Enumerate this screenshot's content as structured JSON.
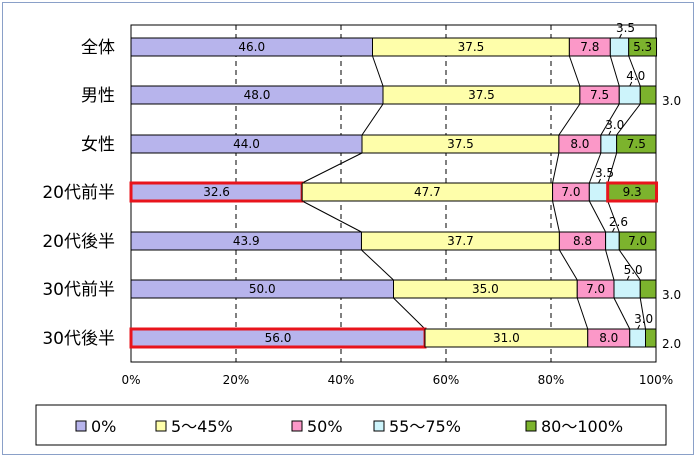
{
  "chart_data": {
    "type": "bar",
    "stacked": "percent",
    "orientation": "horizontal",
    "title": "",
    "xlabel": "",
    "ylabel": "",
    "xlim": [
      0,
      100
    ],
    "grid": true,
    "categories": [
      "全体",
      "男性",
      "女性",
      "20代前半",
      "20代後半",
      "30代前半",
      "30代後半"
    ],
    "series": [
      {
        "name": "0%",
        "color": "#b7b4ec",
        "values": [
          46.0,
          48.0,
          44.0,
          32.6,
          43.9,
          50.0,
          56.0
        ],
        "labels": [
          "46.0",
          "48.0",
          "44.0",
          "32.6",
          "43.9",
          "50.0",
          "56.0"
        ]
      },
      {
        "name": "5～45%",
        "color": "#fefeaa",
        "values": [
          37.5,
          37.5,
          37.5,
          47.7,
          37.7,
          35.0,
          31.0
        ],
        "labels": [
          "37.5",
          "37.5",
          "37.5",
          "47.7",
          "37.7",
          "35.0",
          "31.0"
        ]
      },
      {
        "name": "50%",
        "color": "#fb98c8",
        "values": [
          7.8,
          7.5,
          8.0,
          7.0,
          8.8,
          7.0,
          8.0
        ],
        "labels": [
          "7.8",
          "7.5",
          "8.0",
          "7.0",
          "8.8",
          "7.0",
          "8.0"
        ]
      },
      {
        "name": "55～75%",
        "color": "#cdf4fb",
        "values": [
          3.5,
          4.0,
          3.0,
          3.5,
          2.6,
          5.0,
          3.0
        ],
        "labels": [
          "3.5",
          "4.0",
          "3.0",
          "3.5",
          "2.6",
          "5.0",
          "3.0"
        ]
      },
      {
        "name": "80～100%",
        "color": "#7cb32d",
        "values": [
          5.3,
          3.0,
          7.5,
          9.3,
          7.0,
          3.0,
          2.0
        ],
        "labels": [
          "5.3",
          "3.0",
          "7.5",
          "9.3",
          "7.0",
          "3.0",
          "2.0"
        ]
      }
    ],
    "x_ticks": [
      "0%",
      "20%",
      "40%",
      "60%",
      "80%",
      "100%"
    ],
    "highlighted": [
      {
        "category": "20代前半",
        "series": "0%"
      },
      {
        "category": "20代前半",
        "series": "80～100%"
      },
      {
        "category": "30代後半",
        "series": "0%"
      }
    ],
    "legend_position": "bottom"
  }
}
